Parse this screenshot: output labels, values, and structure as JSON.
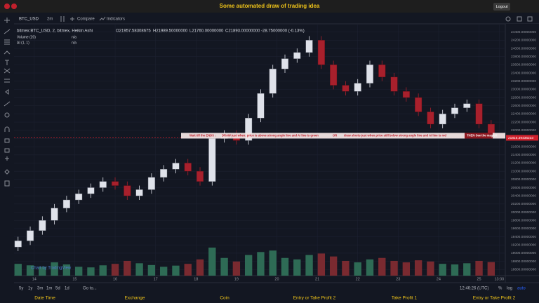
{
  "header": {
    "title": "Some automated draw of trading idea",
    "logout": "Logout"
  },
  "toolbar": {
    "symbol": "BTC_USD",
    "interval": "2m",
    "compare": "Compare",
    "indicators": "Indicators"
  },
  "legend": {
    "symbol": "bitmex:BTC_USD, 2, bitmex, Heikin Ashi",
    "open": "O21957.58308675",
    "high": "H21989.50000000",
    "low": "L21760.00000000",
    "close": "C21893.00000000",
    "change": "-28.75000000 (-0.13%)",
    "volume": "Volume (20)",
    "volume_value": "n/a",
    "ai": "AI (1, 1)",
    "ai_value": "n/a"
  },
  "chart_data": {
    "type": "candlestick",
    "x": [
      13.6,
      13.9,
      14.2,
      14.5,
      14.8,
      15.1,
      15.4,
      15.7,
      16.0,
      16.3,
      16.6,
      16.9,
      17.2,
      17.5,
      17.8,
      18.1,
      18.4,
      18.7,
      19.0,
      19.3,
      19.6,
      19.9,
      20.2,
      20.5,
      20.8,
      21.1,
      21.4,
      21.7,
      22.0,
      22.3,
      22.6,
      22.9,
      23.2,
      23.5,
      23.8,
      24.1,
      24.4,
      24.7,
      25.0,
      25.3
    ],
    "open": [
      19150,
      19300,
      19550,
      19800,
      20100,
      20300,
      20450,
      20600,
      20750,
      20650,
      20400,
      20550,
      20850,
      21050,
      21200,
      21000,
      20750,
      21800,
      21900,
      21750,
      22300,
      22900,
      23500,
      23750,
      23900,
      24200,
      23600,
      23100,
      22950,
      23150,
      23600,
      23300,
      22950,
      22800,
      22450,
      22150,
      22400,
      22550,
      22650,
      22150
    ],
    "high": [
      19400,
      19650,
      19900,
      20200,
      20400,
      20550,
      20700,
      20850,
      20850,
      20750,
      20650,
      20950,
      21150,
      21300,
      21300,
      21100,
      21900,
      22000,
      22000,
      22400,
      23000,
      23600,
      23850,
      24000,
      24300,
      24300,
      23700,
      23200,
      23250,
      23700,
      23700,
      23400,
      23050,
      22900,
      22550,
      22500,
      22650,
      22750,
      22750,
      22250
    ],
    "low": [
      19050,
      19200,
      19450,
      19700,
      20000,
      20200,
      20350,
      20500,
      20550,
      20300,
      20300,
      20450,
      20750,
      20950,
      20900,
      20650,
      20650,
      21700,
      21650,
      21650,
      22200,
      22800,
      23400,
      23650,
      23800,
      23500,
      23000,
      22850,
      22850,
      23050,
      23200,
      22850,
      22700,
      22350,
      22050,
      22050,
      22300,
      22450,
      22050,
      21800
    ],
    "close": [
      19300,
      19550,
      19800,
      20100,
      20300,
      20450,
      20600,
      20750,
      20650,
      20400,
      20550,
      20850,
      21050,
      21200,
      21000,
      20750,
      21800,
      21900,
      21750,
      22300,
      22900,
      23500,
      23750,
      23900,
      24200,
      23600,
      23100,
      22950,
      23150,
      23600,
      23300,
      22950,
      22800,
      22450,
      22150,
      22400,
      22550,
      22650,
      22150,
      21900
    ],
    "volume": [
      40,
      35,
      30,
      45,
      38,
      30,
      28,
      35,
      40,
      50,
      42,
      36,
      30,
      34,
      40,
      55,
      95,
      60,
      48,
      70,
      80,
      85,
      60,
      55,
      70,
      75,
      65,
      50,
      45,
      55,
      60,
      50,
      45,
      52,
      48,
      40,
      38,
      42,
      50,
      46
    ],
    "colors": {
      "up": "#dfe2ea",
      "down": "#a8202c",
      "volume_up": "#2e6b55",
      "volume_down": "#7a2a30"
    },
    "xlim": [
      13.5,
      25.65
    ],
    "xticks": [
      14,
      15,
      16,
      17,
      18,
      19,
      20,
      21,
      22,
      23,
      24,
      25,
      {
        "value": 25.5,
        "label": "13:00"
      }
    ],
    "ylim": [
      18450,
      24600
    ],
    "yticks": [
      {
        "value": 18600,
        "label": "18600.00000000"
      },
      {
        "value": 18800,
        "label": "18800.00000000"
      },
      {
        "value": 19000,
        "label": "19000.00000000"
      },
      {
        "value": 19200,
        "label": "19200.00000000"
      },
      {
        "value": 19400,
        "label": "19400.00000000"
      },
      {
        "value": 19600,
        "label": "19600.00000000"
      },
      {
        "value": 19800,
        "label": "19800.00000000"
      },
      {
        "value": 20000,
        "label": "20000.00000000"
      },
      {
        "value": 20200,
        "label": "20200.00000000"
      },
      {
        "value": 20400,
        "label": "20400.00000000"
      },
      {
        "value": 20600,
        "label": "20600.00000000"
      },
      {
        "value": 20800,
        "label": "20800.00000000"
      },
      {
        "value": 21000,
        "label": "21000.00000000"
      },
      {
        "value": 21200,
        "label": "21200.00000000"
      },
      {
        "value": 21400,
        "label": "21400.00000000"
      },
      {
        "value": 21600,
        "label": "21600.00000000"
      },
      {
        "value": 21800,
        "label": "21800.00000000"
      },
      {
        "value": 22000,
        "label": "22000.00000000"
      },
      {
        "value": 22200,
        "label": "22200.00000000"
      },
      {
        "value": 22400,
        "label": "22400.00000000"
      },
      {
        "value": 22600,
        "label": "22600.00000000"
      },
      {
        "value": 22800,
        "label": "22800.00000000"
      },
      {
        "value": 23000,
        "label": "23000.00000000"
      },
      {
        "value": 23200,
        "label": "23200.00000000"
      },
      {
        "value": 23400,
        "label": "23400.00000000"
      },
      {
        "value": 23600,
        "label": "23600.00000000"
      },
      {
        "value": 23800,
        "label": "23800.00000000"
      },
      {
        "value": 24000,
        "label": "24000.00000000"
      },
      {
        "value": 24200,
        "label": "24200.00000000"
      },
      {
        "value": 24400,
        "label": "24400.00000000"
      }
    ],
    "grid": true,
    "price_line": {
      "value": 21816.39436233,
      "label": "21816.39436233",
      "color": "#d0202c"
    },
    "annotation": {
      "wait": "Wait till the ENDS ↓",
      "long": "DRAW just when: price is above strong angle line and AI line is green",
      "or": "OR",
      "short": "draw shorts just when price still below strong angle line and AI line is red",
      "then": "THEN See the magic!!"
    }
  },
  "watermark": "Chart by TradingView",
  "range_bar": {
    "ranges": [
      "5y",
      "1y",
      "3m",
      "1m",
      "5d",
      "1d"
    ],
    "goto": "Go to...",
    "time": "12:46:26 (UTC)",
    "percent": "%",
    "log": "log",
    "auto": "auto"
  },
  "footer": [
    "Date Time",
    "Exchange",
    "Coin",
    "Entry or Take Profit 2",
    "Take Profit 1",
    "Entry or Take Profit 2"
  ]
}
